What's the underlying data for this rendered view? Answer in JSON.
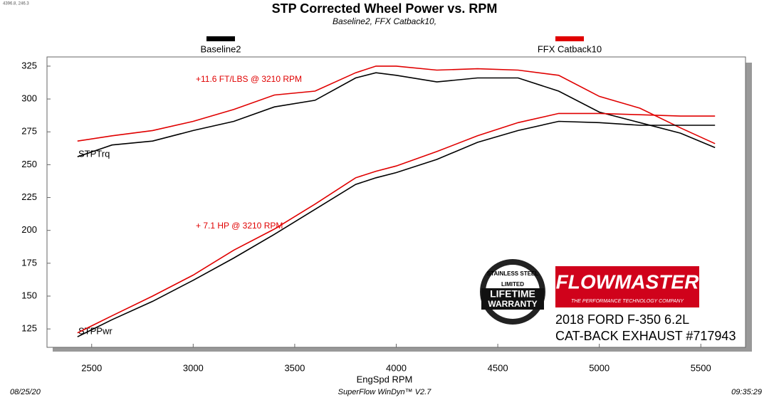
{
  "chart_data": {
    "type": "line",
    "title": "STP Corrected Wheel Power vs. RPM",
    "subtitle": "Baseline2, FFX Catback10,",
    "cursor_readout": "4396.8, 246.3",
    "x_label": "EngSpd  RPM",
    "x": [
      2430,
      2600,
      2800,
      3000,
      3200,
      3400,
      3600,
      3800,
      3900,
      4000,
      4200,
      4400,
      4600,
      4800,
      5000,
      5200,
      5400,
      5570
    ],
    "xlim": [
      2280,
      5720
    ],
    "xticks": [
      2500,
      3000,
      3500,
      4000,
      4500,
      5000,
      5500
    ],
    "ylim": [
      111,
      332
    ],
    "yticks": [
      125,
      150,
      175,
      200,
      225,
      250,
      275,
      300,
      325
    ],
    "grid": false,
    "curves": [
      {
        "label": "STPTrq",
        "series": [
          {
            "name": "Baseline2",
            "color": "#000000",
            "values": [
              256,
              265,
              268,
              276,
              283,
              294,
              299,
              316,
              320,
              318,
              313,
              316,
              316,
              306,
              290,
              282,
              274,
              263
            ]
          },
          {
            "name": "FFX Catback10",
            "color": "#e00000",
            "values": [
              268,
              272,
              276,
              283,
              292,
              303,
              306,
              320,
              325,
              325,
              322,
              323,
              322,
              318,
              302,
              293,
              278,
              266
            ]
          }
        ]
      },
      {
        "label": "STPPwr",
        "series": [
          {
            "color": "#000000",
            "values": [
              119,
              132,
              146,
              162,
              179,
              197,
              216,
              235,
              240,
              244,
              254,
              267,
              276,
              283,
              282,
              280,
              280,
              280
            ]
          },
          {
            "color": "#e00000",
            "values": [
              122,
              135,
              150,
              166,
              185,
              201,
              220,
              240,
              245,
              249,
              260,
              272,
              282,
              289,
              289,
              288,
              287,
              287
            ]
          }
        ]
      }
    ],
    "annotations": [
      "+11.6 FT/LBS @ 3210 RPM",
      "+ 7.1 HP @ 3210 RPM"
    ],
    "badge": [
      "STAINLESS STEEL",
      "LIMITED",
      "LIFETIME",
      "WARRANTY"
    ],
    "brand": "FLOWMASTER",
    "brand_tagline": "THE PERFORMANCE TECHNOLOGY COMPANY",
    "vehicle": [
      "2018 FORD F-350 6.2L",
      "CAT-BACK EXHAUST #717943"
    ],
    "footer": {
      "date": "08/25/20",
      "software": "SuperFlow WinDyn™ V2.7",
      "time": "09:35:29"
    }
  }
}
